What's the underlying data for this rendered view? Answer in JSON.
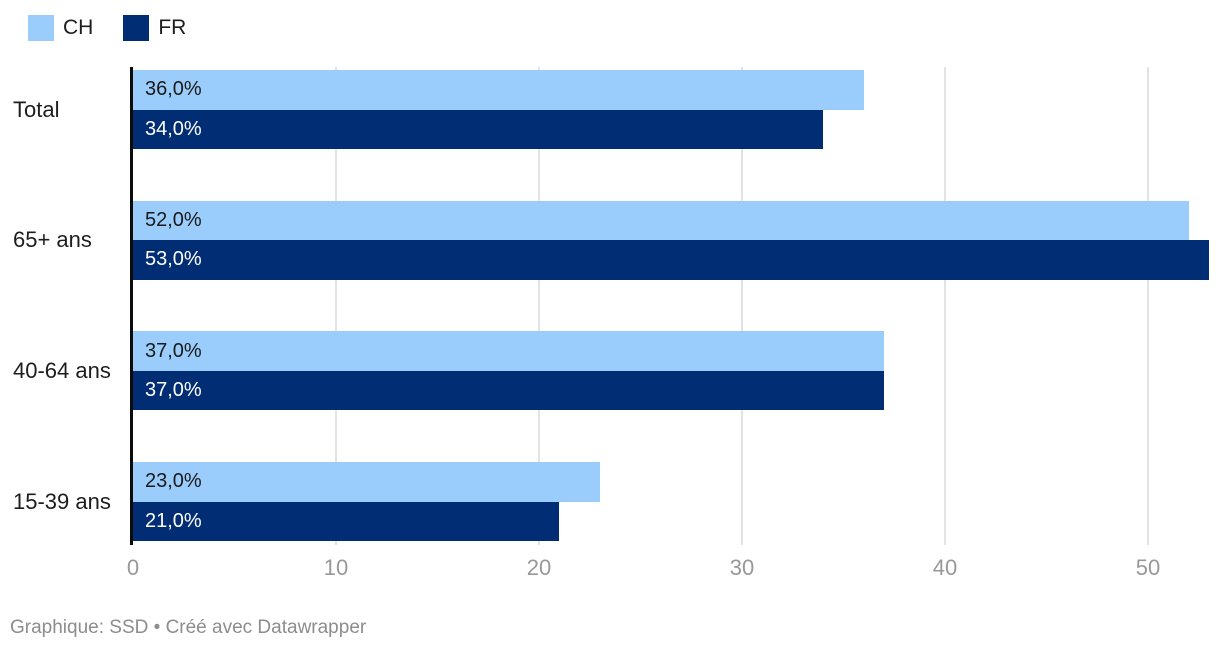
{
  "legend": {
    "items": [
      {
        "label": "CH",
        "color": "#9ACDFC"
      },
      {
        "label": "FR",
        "color": "#002D74"
      }
    ]
  },
  "chart_data": {
    "type": "bar",
    "orientation": "horizontal",
    "title": "",
    "xlabel": "",
    "ylabel": "",
    "categories": [
      "Total",
      "65+ ans",
      "40-64 ans",
      "15-39 ans"
    ],
    "series": [
      {
        "name": "CH",
        "color": "#9ACDFC",
        "values": [
          36.0,
          52.0,
          37.0,
          23.0
        ],
        "value_labels": [
          "36,0%",
          "52,0%",
          "37,0%",
          "23,0%"
        ],
        "label_color": "#1a1a1a"
      },
      {
        "name": "FR",
        "color": "#002D74",
        "values": [
          34.0,
          53.0,
          37.0,
          21.0
        ],
        "value_labels": [
          "34,0%",
          "53,0%",
          "37,0%",
          "21,0%"
        ],
        "label_color": "#ffffff"
      }
    ],
    "x_ticks": [
      0,
      10,
      20,
      30,
      40,
      50
    ],
    "xlim": [
      0,
      53.6
    ],
    "grid": "vertical",
    "legend_position": "top-left"
  },
  "footer": {
    "credit": "Graphique: SSD • Créé avec Datawrapper"
  }
}
